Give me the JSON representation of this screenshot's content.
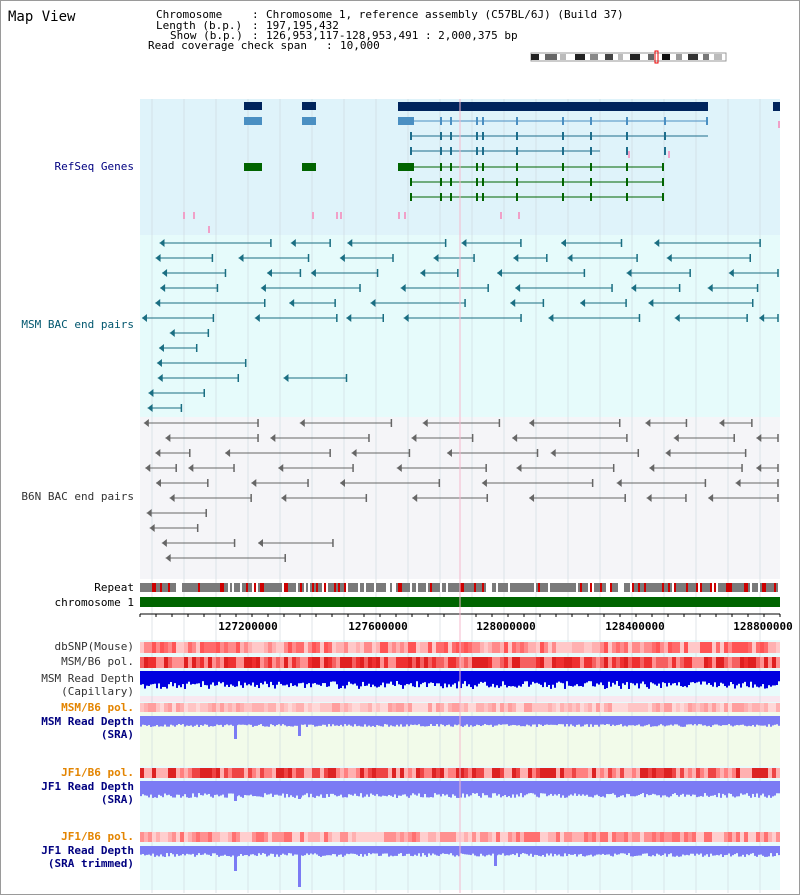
{
  "title": "Map View",
  "info": {
    "chromosome_key": "Chromosome",
    "chromosome_val": "Chromosome 1, reference assembly (C57BL/6J) (Build 37)",
    "length_key": "Length (b.p.)",
    "length_val": "197,195,432",
    "show_key": "Show (b.p.)",
    "show_val": "126,953,117-128,953,491 : 2,000,375 bp",
    "coverage_key": "Read coverage check span",
    "coverage_val": "10,000"
  },
  "tracks": {
    "refseq": "RefSeq Genes",
    "msm_bac": "MSM BAC end pairs",
    "b6n_bac": "B6N BAC end pairs",
    "repeat": "Repeat",
    "chromosome": "chromosome 1",
    "dbsnp": "dbSNP(Mouse)",
    "msm_pol1": "MSM/B6 pol.",
    "msm_depth_cap_1": "MSM Read Depth",
    "msm_depth_cap_2": "(Capillary)",
    "msm_pol2": "MSM/B6 pol.",
    "msm_depth_sra_1": "MSM Read Depth",
    "msm_depth_sra_2": "(SRA)",
    "jf1_pol1": "JF1/B6 pol.",
    "jf1_depth_sra_1": "JF1 Read Depth",
    "jf1_depth_sra_2": "(SRA)",
    "jf1_pol2": "JF1/B6 pol.",
    "jf1_depth_trim_1": "JF1 Read Depth",
    "jf1_depth_trim_2": "(SRA trimmed)"
  },
  "axis_ticks": [
    "127200000",
    "127600000",
    "128000000",
    "128400000",
    "128800000"
  ],
  "colors": {
    "refseq_bg": "#dff3fa",
    "bac_bg": "#e6fbfb",
    "b6n_bg": "#f5f5f8",
    "gene_navy": "#00245c",
    "gene_blue": "#4a8fc2",
    "gene_green": "#006400",
    "repeat_red": "#cc0000",
    "chrom_green": "#006400",
    "depth_blue": "#0000e0",
    "depth_light": "#7b7bf4"
  }
}
